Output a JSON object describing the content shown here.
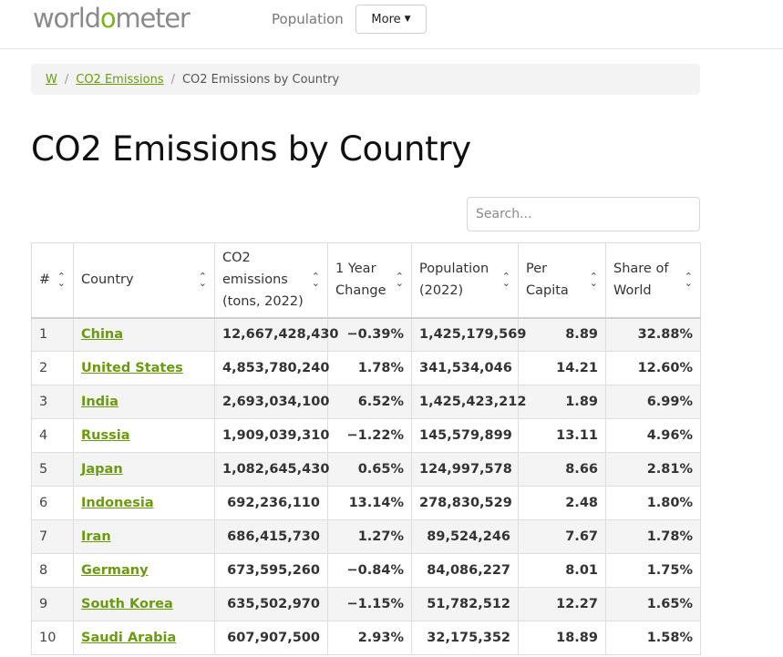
{
  "header": {
    "logo_prefix": "world",
    "logo_o": "o",
    "logo_suffix": "meter",
    "nav_population": "Population",
    "more_label": "More"
  },
  "breadcrumb": {
    "home": "W",
    "parent": "CO2 Emissions",
    "current": "CO2 Emissions by Country",
    "separator": "/"
  },
  "page_title": "CO2 Emissions by Country",
  "search": {
    "placeholder": "Search..."
  },
  "table": {
    "columns": [
      "#",
      "Country",
      "CO2 emissions (tons, 2022)",
      "1 Year Change",
      "Population (2022)",
      "Per Capita",
      "Share of World"
    ],
    "rows": [
      {
        "rank": "1",
        "country": "China",
        "emissions": "12,667,428,430",
        "change": "−0.39%",
        "population": "1,425,179,569",
        "per_capita": "8.89",
        "share": "32.88%"
      },
      {
        "rank": "2",
        "country": "United States",
        "emissions": "4,853,780,240",
        "change": "1.78%",
        "population": "341,534,046",
        "per_capita": "14.21",
        "share": "12.60%"
      },
      {
        "rank": "3",
        "country": "India",
        "emissions": "2,693,034,100",
        "change": "6.52%",
        "population": "1,425,423,212",
        "per_capita": "1.89",
        "share": "6.99%"
      },
      {
        "rank": "4",
        "country": "Russia",
        "emissions": "1,909,039,310",
        "change": "−1.22%",
        "population": "145,579,899",
        "per_capita": "13.11",
        "share": "4.96%"
      },
      {
        "rank": "5",
        "country": "Japan",
        "emissions": "1,082,645,430",
        "change": "0.65%",
        "population": "124,997,578",
        "per_capita": "8.66",
        "share": "2.81%"
      },
      {
        "rank": "6",
        "country": "Indonesia",
        "emissions": "692,236,110",
        "change": "13.14%",
        "population": "278,830,529",
        "per_capita": "2.48",
        "share": "1.80%"
      },
      {
        "rank": "7",
        "country": "Iran",
        "emissions": "686,415,730",
        "change": "1.27%",
        "population": "89,524,246",
        "per_capita": "7.67",
        "share": "1.78%"
      },
      {
        "rank": "8",
        "country": "Germany",
        "emissions": "673,595,260",
        "change": "−0.84%",
        "population": "84,086,227",
        "per_capita": "8.01",
        "share": "1.75%"
      },
      {
        "rank": "9",
        "country": "South Korea",
        "emissions": "635,502,970",
        "change": "−1.15%",
        "population": "51,782,512",
        "per_capita": "12.27",
        "share": "1.65%"
      },
      {
        "rank": "10",
        "country": "Saudi Arabia",
        "emissions": "607,907,500",
        "change": "2.93%",
        "population": "32,175,352",
        "per_capita": "18.89",
        "share": "1.58%"
      }
    ]
  },
  "colors": {
    "accent_green": "#6a9a10",
    "logo_green": "#7cb518",
    "stripe": "#f4f4f4"
  }
}
